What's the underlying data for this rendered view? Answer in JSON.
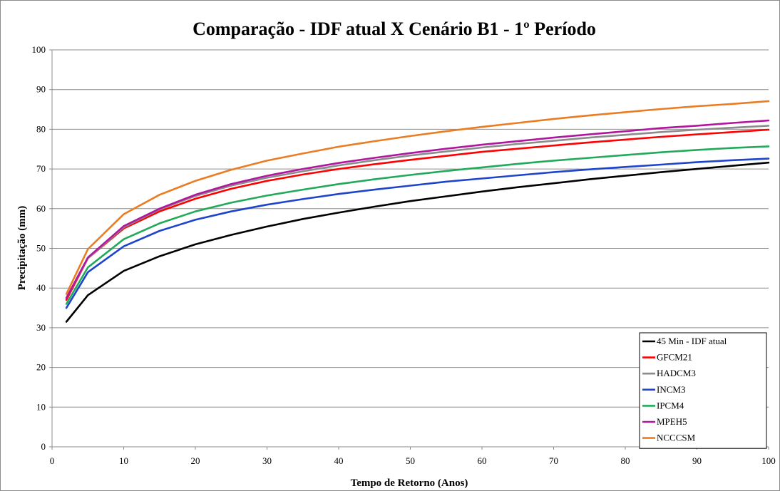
{
  "chart_data": {
    "type": "line",
    "title": "Comparação - IDF atual X Cenário B1 - 1º Período",
    "xlabel": "Tempo de Retorno (Anos)",
    "ylabel": "Precipitação (mm)",
    "xlim": [
      0,
      100
    ],
    "ylim": [
      0,
      100
    ],
    "xticks": [
      "0",
      "10",
      "20",
      "30",
      "40",
      "50",
      "60",
      "70",
      "80",
      "90",
      "100"
    ],
    "yticks": [
      "0",
      "10",
      "20",
      "30",
      "40",
      "50",
      "60",
      "70",
      "80",
      "90",
      "100"
    ],
    "grid": "horizontal",
    "legend_position": "bottom-right",
    "x": [
      2,
      5,
      10,
      15,
      20,
      25,
      30,
      35,
      40,
      45,
      50,
      55,
      60,
      65,
      70,
      75,
      80,
      85,
      90,
      95,
      100
    ],
    "series": [
      {
        "name": "45 Min - IDF atual",
        "color": "#000000",
        "values": [
          31.5,
          38.2,
          44.3,
          48.0,
          51.0,
          53.4,
          55.5,
          57.4,
          59.0,
          60.5,
          61.9,
          63.1,
          64.3,
          65.4,
          66.4,
          67.4,
          68.3,
          69.2,
          70.0,
          70.8,
          71.6
        ]
      },
      {
        "name": "GFCM21",
        "color": "#ff0000",
        "values": [
          37.0,
          47.5,
          55.0,
          59.3,
          62.5,
          65.0,
          67.0,
          68.6,
          70.0,
          71.2,
          72.3,
          73.3,
          74.3,
          75.1,
          75.9,
          76.7,
          77.4,
          78.1,
          78.7,
          79.3,
          79.9
        ]
      },
      {
        "name": "HADCM3",
        "color": "#8c8c8c",
        "values": [
          37.5,
          47.5,
          55.3,
          59.8,
          63.2,
          65.8,
          67.8,
          69.4,
          70.9,
          72.2,
          73.4,
          74.4,
          75.4,
          76.3,
          77.1,
          77.9,
          78.6,
          79.3,
          79.9,
          80.4,
          80.9
        ]
      },
      {
        "name": "INCM3",
        "color": "#1f44cc",
        "values": [
          35.0,
          44.0,
          50.5,
          54.4,
          57.2,
          59.3,
          61.0,
          62.4,
          63.7,
          64.8,
          65.8,
          66.8,
          67.6,
          68.4,
          69.2,
          69.9,
          70.5,
          71.1,
          71.7,
          72.2,
          72.6
        ]
      },
      {
        "name": "IPCM4",
        "color": "#22aa5a",
        "values": [
          36.0,
          45.2,
          52.3,
          56.3,
          59.3,
          61.5,
          63.3,
          64.8,
          66.2,
          67.4,
          68.5,
          69.5,
          70.4,
          71.3,
          72.1,
          72.8,
          73.5,
          74.2,
          74.8,
          75.3,
          75.7
        ]
      },
      {
        "name": "MPEH5",
        "color": "#b0169e",
        "values": [
          37.5,
          47.7,
          55.6,
          60.0,
          63.5,
          66.2,
          68.3,
          70.0,
          71.5,
          72.8,
          74.0,
          75.1,
          76.1,
          77.0,
          77.9,
          78.7,
          79.5,
          80.3,
          80.9,
          81.6,
          82.2
        ]
      },
      {
        "name": "NCCCSM",
        "color": "#ea7d23",
        "values": [
          38.5,
          49.8,
          58.6,
          63.5,
          67.0,
          69.8,
          72.1,
          73.9,
          75.6,
          77.0,
          78.3,
          79.5,
          80.6,
          81.6,
          82.6,
          83.5,
          84.3,
          85.1,
          85.8,
          86.4,
          87.1
        ]
      }
    ]
  }
}
